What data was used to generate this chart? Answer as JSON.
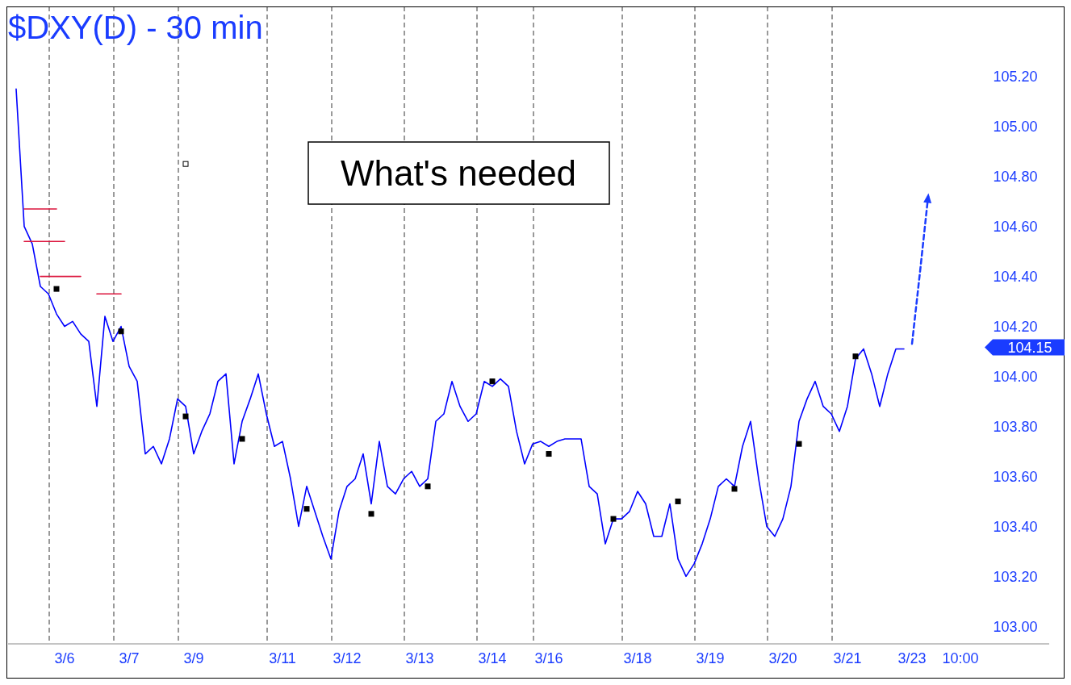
{
  "chart_data": {
    "type": "line",
    "title": "$DXY(D) - 30 min",
    "categories": [
      null,
      null,
      null,
      null,
      null,
      null,
      null,
      "3/6",
      null,
      null,
      null,
      null,
      null,
      null,
      null,
      "3/7",
      null,
      null,
      null,
      null,
      null,
      null,
      null,
      "3/9",
      null,
      null,
      null,
      null,
      null,
      null,
      null,
      null,
      null,
      null,
      "3/11",
      null,
      null,
      null,
      null,
      null,
      null,
      null,
      "3/12",
      null,
      null,
      null,
      null,
      null,
      null,
      null,
      null,
      "3/13",
      null,
      null,
      null,
      null,
      null,
      null,
      null,
      null,
      "3/14",
      null,
      null,
      null,
      null,
      null,
      null,
      "3/16",
      null,
      null,
      null,
      null,
      null,
      null,
      null,
      null,
      null,
      null,
      "3/18",
      null,
      null,
      null,
      null,
      null,
      null,
      null,
      null,
      "3/19",
      null,
      null,
      null,
      null,
      null,
      null,
      null,
      null,
      "3/20",
      null,
      null,
      null,
      null,
      null,
      null,
      null,
      "3/21",
      null,
      null,
      null,
      null,
      null,
      null,
      null,
      "3/23",
      null,
      null,
      null,
      null,
      null,
      "10:00",
      null
    ],
    "ylim": [
      102.93,
      105.48
    ],
    "yticks": [
      {
        "value": 103,
        "label": "103.00"
      },
      {
        "value": 103.2,
        "label": "103.20"
      },
      {
        "value": 103.4,
        "label": "103.40"
      },
      {
        "value": 103.6,
        "label": "103.60"
      },
      {
        "value": 103.8,
        "label": "103.80"
      },
      {
        "value": 104,
        "label": "104.00"
      },
      {
        "value": 104.2,
        "label": "104.20"
      },
      {
        "value": 104.4,
        "label": "104.40"
      },
      {
        "value": 104.6,
        "label": "104.60"
      },
      {
        "value": 104.8,
        "label": "104.80"
      },
      {
        "value": 105,
        "label": "105.00"
      },
      {
        "value": 105.2,
        "label": "105.20"
      }
    ],
    "series": [
      {
        "color": "#0000ff",
        "values": [
          null,
          105.15,
          104.6,
          104.53,
          104.36,
          104.33,
          104.25,
          104.2,
          104.22,
          104.17,
          104.14,
          103.88,
          104.24,
          104.14,
          104.2,
          104.04,
          103.98,
          103.69,
          103.72,
          103.65,
          103.75,
          103.91,
          103.88,
          103.69,
          103.78,
          103.85,
          103.98,
          104.01,
          103.65,
          103.82,
          103.91,
          104.01,
          103.85,
          103.72,
          103.74,
          103.59,
          103.4,
          103.56,
          103.46,
          103.36,
          103.27,
          103.46,
          103.56,
          103.59,
          103.69,
          103.49,
          103.74,
          103.56,
          103.53,
          103.59,
          103.62,
          103.56,
          103.59,
          103.82,
          103.85,
          103.98,
          103.88,
          103.82,
          103.85,
          103.98,
          103.96,
          103.99,
          103.96,
          103.78,
          103.65,
          103.73,
          103.74,
          103.72,
          103.74,
          103.75,
          103.75,
          103.75,
          103.56,
          103.53,
          103.33,
          103.43,
          103.43,
          103.46,
          103.54,
          103.49,
          103.36,
          103.36,
          103.49,
          103.27,
          103.2,
          103.25,
          103.33,
          103.43,
          103.56,
          103.59,
          103.56,
          103.72,
          103.82,
          103.59,
          103.4,
          103.36,
          103.43,
          103.56,
          103.82,
          103.91,
          103.98,
          103.88,
          103.85,
          103.78,
          103.88,
          104.07,
          104.11,
          104.01,
          103.88,
          104.01,
          104.11,
          104.11,
          null,
          null,
          null,
          null,
          null,
          null,
          null,
          null
        ]
      },
      {
        "type": "line",
        "color": "#1a3cff",
        "line_style": "dashed",
        "values": [
          null,
          null,
          null,
          null,
          null,
          null,
          null,
          null,
          null,
          null,
          null,
          null,
          null,
          null,
          null,
          null,
          null,
          null,
          null,
          null,
          null,
          null,
          null,
          null,
          null,
          null,
          null,
          null,
          null,
          null,
          null,
          null,
          null,
          null,
          null,
          null,
          null,
          null,
          null,
          null,
          null,
          null,
          null,
          null,
          null,
          null,
          null,
          null,
          null,
          null,
          null,
          null,
          null,
          null,
          null,
          null,
          null,
          null,
          null,
          null,
          null,
          null,
          null,
          null,
          null,
          null,
          null,
          null,
          null,
          null,
          null,
          null,
          null,
          null,
          null,
          null,
          null,
          null,
          null,
          null,
          null,
          null,
          null,
          null,
          null,
          null,
          null,
          null,
          null,
          null,
          null,
          null,
          null,
          null,
          null,
          null,
          null,
          null,
          null,
          null,
          null,
          null,
          null,
          null,
          null,
          null,
          null,
          null,
          null,
          null,
          null,
          null,
          104.13,
          104.42,
          104.72,
          null,
          null,
          null,
          null,
          null
        ]
      },
      {
        "type": "line",
        "color": "#dc143c",
        "values": [
          null,
          null,
          104.67,
          104.67,
          104.67,
          104.67,
          104.67,
          null,
          null,
          null,
          null,
          null,
          null,
          null,
          null,
          null,
          null,
          null,
          null,
          null,
          null,
          null,
          null,
          null,
          null,
          null,
          null,
          null,
          null,
          null,
          null,
          null,
          null,
          null,
          null,
          null,
          null,
          null,
          null,
          null,
          null,
          null,
          null,
          null,
          null,
          null,
          null,
          null,
          null,
          null,
          null,
          null,
          null,
          null,
          null,
          null,
          null,
          null,
          null,
          null,
          null,
          null,
          null,
          null,
          null,
          null,
          null,
          null,
          null,
          null,
          null,
          null,
          null,
          null,
          null,
          null,
          null,
          null,
          null,
          null,
          null,
          null,
          null,
          null,
          null,
          null,
          null,
          null,
          null,
          null,
          null,
          null,
          null,
          null,
          null,
          null,
          null,
          null,
          null,
          null,
          null,
          null,
          null,
          null,
          null,
          null,
          null,
          null,
          null,
          null,
          null,
          null,
          null,
          null,
          null,
          null,
          null,
          null,
          null,
          null
        ]
      },
      {
        "type": "line",
        "color": "#dc143c",
        "values": [
          null,
          null,
          104.54,
          104.54,
          104.54,
          104.54,
          104.54,
          104.54,
          null,
          null,
          null,
          null,
          null,
          null,
          null,
          null,
          null,
          null,
          null,
          null,
          null,
          null,
          null,
          null,
          null,
          null,
          null,
          null,
          null,
          null,
          null,
          null,
          null,
          null,
          null,
          null,
          null,
          null,
          null,
          null,
          null,
          null,
          null,
          null,
          null,
          null,
          null,
          null,
          null,
          null,
          null,
          null,
          null,
          null,
          null,
          null,
          null,
          null,
          null,
          null,
          null,
          null,
          null,
          null,
          null,
          null,
          null,
          null,
          null,
          null,
          null,
          null,
          null,
          null,
          null,
          null,
          null,
          null,
          null,
          null,
          null,
          null,
          null,
          null,
          null,
          null,
          null,
          null,
          null,
          null,
          null,
          null,
          null,
          null,
          null,
          null,
          null,
          null,
          null,
          null,
          null,
          null,
          null,
          null,
          null,
          null,
          null,
          null,
          null,
          null,
          null,
          null,
          null,
          null,
          null,
          null,
          null,
          null,
          null,
          null
        ]
      },
      {
        "type": "line",
        "color": "#dc143c",
        "values": [
          null,
          null,
          null,
          null,
          104.4,
          104.4,
          104.4,
          104.4,
          104.4,
          104.4,
          null,
          null,
          null,
          null,
          null,
          null,
          null,
          null,
          null,
          null,
          null,
          null,
          null,
          null,
          null,
          null,
          null,
          null,
          null,
          null,
          null,
          null,
          null,
          null,
          null,
          null,
          null,
          null,
          null,
          null,
          null,
          null,
          null,
          null,
          null,
          null,
          null,
          null,
          null,
          null,
          null,
          null,
          null,
          null,
          null,
          null,
          null,
          null,
          null,
          null,
          null,
          null,
          null,
          null,
          null,
          null,
          null,
          null,
          null,
          null,
          null,
          null,
          null,
          null,
          null,
          null,
          null,
          null,
          null,
          null,
          null,
          null,
          null,
          null,
          null,
          null,
          null,
          null,
          null,
          null,
          null,
          null,
          null,
          null,
          null,
          null,
          null,
          null,
          null,
          null,
          null,
          null,
          null,
          null,
          null,
          null,
          null,
          null,
          null,
          null,
          null,
          null,
          null,
          null,
          null,
          null,
          null,
          null,
          null,
          null
        ]
      },
      {
        "type": "line",
        "color": "#dc143c",
        "values": [
          null,
          null,
          null,
          null,
          null,
          null,
          null,
          null,
          null,
          null,
          null,
          104.33,
          104.33,
          104.33,
          104.33,
          null,
          null,
          null,
          null,
          null,
          null,
          null,
          null,
          null,
          null,
          null,
          null,
          null,
          null,
          null,
          null,
          null,
          null,
          null,
          null,
          null,
          null,
          null,
          null,
          null,
          null,
          null,
          null,
          null,
          null,
          null,
          null,
          null,
          null,
          null,
          null,
          null,
          null,
          null,
          null,
          null,
          null,
          null,
          null,
          null,
          null,
          null,
          null,
          null,
          null,
          null,
          null,
          null,
          null,
          null,
          null,
          null,
          null,
          null,
          null,
          null,
          null,
          null,
          null,
          null,
          null,
          null,
          null,
          null,
          null,
          null,
          null,
          null,
          null,
          null,
          null,
          null,
          null,
          null,
          null,
          null,
          null,
          null,
          null,
          null,
          null,
          null,
          null,
          null,
          null,
          null,
          null,
          null,
          null,
          null,
          null,
          null,
          null,
          null,
          null,
          null,
          null,
          null,
          null,
          null
        ]
      },
      {
        "type": "scatter",
        "marker": "square",
        "color": "#000000",
        "values": [
          null,
          null,
          null,
          null,
          null,
          null,
          104.35,
          null,
          null,
          null,
          null,
          null,
          null,
          null,
          104.18,
          null,
          null,
          null,
          null,
          null,
          null,
          null,
          103.84,
          null,
          null,
          null,
          null,
          null,
          null,
          103.75,
          null,
          null,
          null,
          null,
          null,
          null,
          null,
          103.47,
          null,
          null,
          null,
          null,
          null,
          null,
          null,
          103.45,
          null,
          null,
          null,
          null,
          null,
          null,
          103.56,
          null,
          null,
          null,
          null,
          null,
          null,
          null,
          103.98,
          null,
          null,
          null,
          null,
          null,
          null,
          103.69,
          null,
          null,
          null,
          null,
          null,
          null,
          null,
          103.43,
          null,
          null,
          null,
          null,
          null,
          null,
          null,
          103.5,
          null,
          null,
          null,
          null,
          null,
          null,
          103.55,
          null,
          null,
          null,
          null,
          null,
          null,
          null,
          103.73,
          null,
          null,
          null,
          null,
          null,
          null,
          104.08,
          null,
          null,
          null,
          null,
          null,
          null,
          null,
          null,
          null,
          null,
          null,
          null,
          null,
          null
        ]
      },
      {
        "type": "scatter",
        "marker": "square",
        "color": "#ffffff",
        "values": [
          null,
          null,
          null,
          null,
          null,
          null,
          null,
          null,
          null,
          null,
          null,
          null,
          null,
          null,
          null,
          null,
          null,
          null,
          null,
          null,
          null,
          null,
          104.85,
          null,
          null,
          null,
          null,
          null,
          null,
          null,
          null,
          null,
          null,
          null,
          null,
          null,
          null,
          null,
          null,
          null,
          null,
          null,
          null,
          null,
          null,
          null,
          null,
          null,
          null,
          null,
          null,
          null,
          null,
          null,
          null,
          null,
          null,
          null,
          null,
          null,
          null,
          null,
          null,
          null,
          null,
          null,
          null,
          null,
          null,
          null,
          null,
          null,
          null,
          null,
          null,
          null,
          null,
          null,
          null,
          null,
          null,
          null,
          null,
          null,
          null,
          null,
          null,
          null,
          null,
          null,
          null,
          null,
          null,
          null,
          null,
          null,
          null,
          null,
          null,
          null,
          null,
          null,
          null,
          null,
          null,
          null,
          null,
          null,
          null,
          null,
          null,
          null,
          null,
          null,
          null,
          null,
          null,
          null,
          null,
          null
        ]
      }
    ],
    "annotations": [
      "What's needed",
      "104.15"
    ]
  }
}
